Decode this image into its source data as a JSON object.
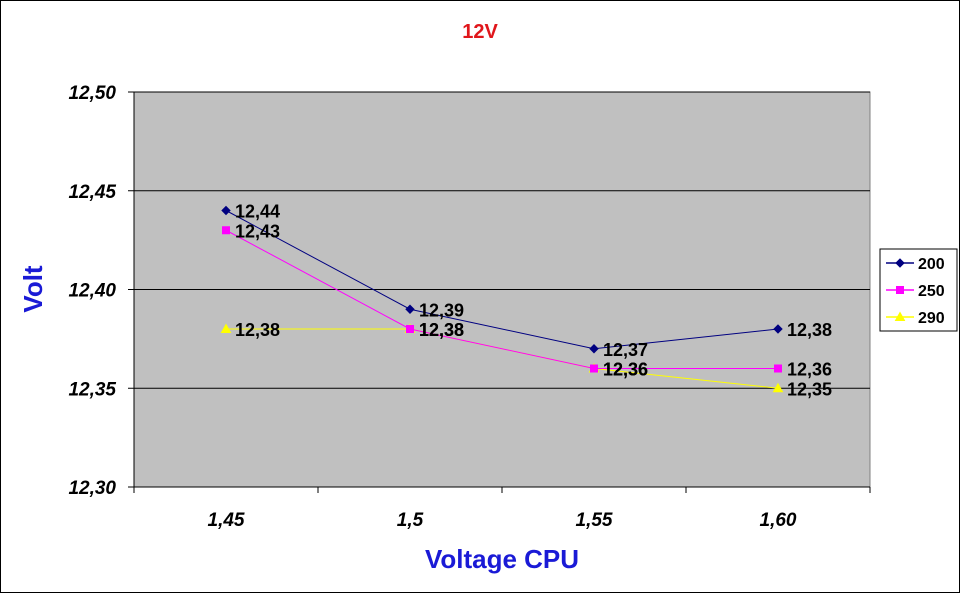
{
  "chart_data": {
    "type": "line",
    "title": "12V",
    "xlabel": "Voltage CPU",
    "ylabel": "Volt",
    "categories": [
      "1,45",
      "1,5",
      "1,55",
      "1,60"
    ],
    "ylim": [
      12.3,
      12.5
    ],
    "yticks": [
      "12,30",
      "12,35",
      "12,40",
      "12,45",
      "12,50"
    ],
    "grid": "horizontal",
    "legend_position": "right",
    "series": [
      {
        "name": "200",
        "color": "#000080",
        "marker": "diamond",
        "values": [
          12.44,
          12.39,
          12.37,
          12.38
        ],
        "labels": [
          "12,44",
          "12,39",
          "12,37",
          "12,38"
        ]
      },
      {
        "name": "250",
        "color": "#ff00ff",
        "marker": "square",
        "values": [
          12.43,
          12.38,
          12.36,
          12.36
        ],
        "labels": [
          "12,43",
          "12,38",
          "12,36",
          "12,36"
        ]
      },
      {
        "name": "290",
        "color": "#ffff00",
        "marker": "triangle",
        "values": [
          12.38,
          12.38,
          12.36,
          12.35
        ],
        "labels": [
          "12,38",
          "12,38",
          "12,36",
          "12,35"
        ]
      }
    ],
    "colors": {
      "plot_background": "#c0c0c0",
      "title": "#e0161b",
      "axis_title": "#1a1ad6"
    }
  }
}
